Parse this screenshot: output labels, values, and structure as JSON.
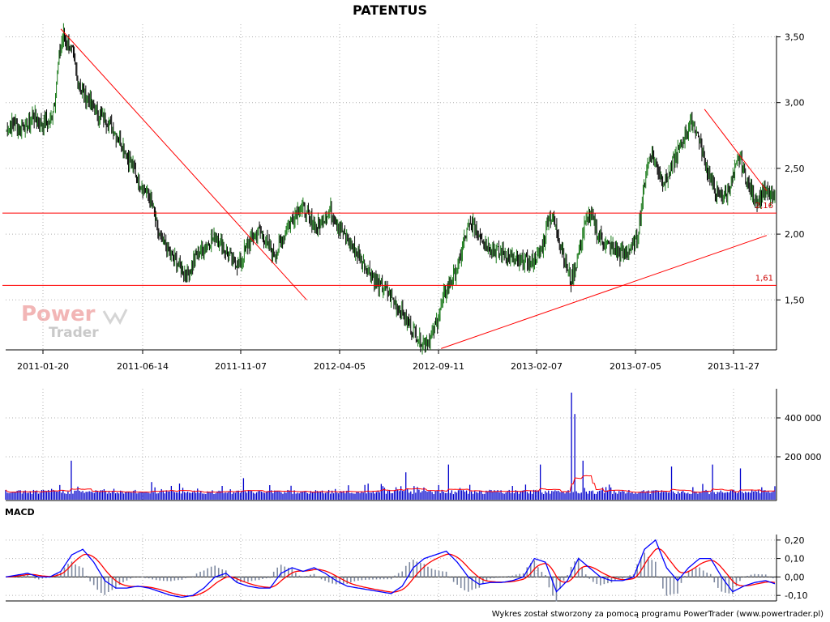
{
  "chart_data": [
    {
      "panel": "price",
      "type": "line",
      "title": "PATENTUS",
      "x_tick_labels": [
        "2011-01-20",
        "2011-06-14",
        "2011-11-07",
        "2012-04-05",
        "2012-09-11",
        "2013-02-07",
        "2013-07-05",
        "2013-11-27"
      ],
      "y_tick_labels": [
        "3,50",
        "3,00",
        "2,50",
        "2,00",
        "1,50"
      ],
      "y_ticks": [
        3.5,
        3.0,
        2.5,
        2.0,
        1.5
      ],
      "ylim": [
        1.12,
        3.62
      ],
      "grid": true,
      "colors": {
        "price_up": "#1a7a1a",
        "price_down": "#000000",
        "lines": "#ff0000"
      },
      "series": [
        {
          "values_approx_weekly": [
            2.78,
            2.82,
            2.85,
            2.8,
            2.83,
            2.82,
            2.9,
            2.88,
            2.84,
            2.86,
            2.85,
            3.02,
            3.35,
            3.52,
            3.45,
            3.38,
            3.2,
            3.1,
            3.05,
            3.0,
            2.95,
            2.9,
            2.88,
            2.85,
            2.8,
            2.75,
            2.7,
            2.62,
            2.55,
            2.48,
            2.4,
            2.35,
            2.3,
            2.2,
            2.05,
            1.95,
            1.9,
            1.85,
            1.8,
            1.75,
            1.72,
            1.7,
            1.78,
            1.85,
            1.88,
            1.92,
            1.95,
            1.98,
            1.95,
            1.9,
            1.85,
            1.8,
            1.78,
            1.8,
            1.9,
            1.95,
            2.0,
            2.02,
            1.98,
            1.9,
            1.85,
            1.88,
            1.95,
            2.05,
            2.1,
            2.15,
            2.2,
            2.18,
            2.12,
            2.08,
            2.05,
            2.1,
            2.15,
            2.18,
            2.12,
            2.05,
            2.0,
            1.95,
            1.9,
            1.85,
            1.8,
            1.75,
            1.7,
            1.65,
            1.6,
            1.58,
            1.55,
            1.5,
            1.45,
            1.4,
            1.35,
            1.3,
            1.25,
            1.2,
            1.18,
            1.2,
            1.25,
            1.35,
            1.48,
            1.58,
            1.65,
            1.7,
            1.8,
            1.95,
            2.05,
            2.08,
            2.02,
            1.98,
            1.92,
            1.9,
            1.88,
            1.85,
            1.85,
            1.82,
            1.8,
            1.78,
            1.8,
            1.78,
            1.78,
            1.82,
            1.85,
            1.95,
            2.15,
            2.1,
            2.0,
            1.9,
            1.75,
            1.65,
            1.75,
            1.9,
            2.05,
            2.15,
            2.1,
            2.0,
            1.95,
            1.92,
            1.9,
            1.88,
            1.85,
            1.85,
            1.88,
            1.9,
            2.0,
            2.25,
            2.5,
            2.6,
            2.55,
            2.45,
            2.4,
            2.45,
            2.55,
            2.62,
            2.7,
            2.78,
            2.85,
            2.8,
            2.7,
            2.55,
            2.45,
            2.35,
            2.3,
            2.28,
            2.3,
            2.4,
            2.5,
            2.6,
            2.45,
            2.35,
            2.3,
            2.25,
            2.32,
            2.3,
            2.28,
            2.25
          ]
        }
      ],
      "levels": [
        {
          "value": 2.16,
          "label": "2,16"
        },
        {
          "value": 1.61,
          "label": "1,61"
        }
      ],
      "trendlines": [
        {
          "from": [
            "2011-02",
            3.56
          ],
          "to": [
            "2012-02",
            1.5
          ]
        },
        {
          "from": [
            "2012-09",
            1.13
          ],
          "to": [
            "2014-01",
            1.99
          ]
        },
        {
          "from": [
            "2013-10",
            2.95
          ],
          "to": [
            "2014-01",
            2.33
          ]
        }
      ]
    },
    {
      "panel": "volume",
      "type": "bar",
      "y_tick_labels": [
        "400 000",
        "200 000"
      ],
      "y_ticks": [
        400000,
        200000
      ],
      "ylim": [
        0,
        550000
      ],
      "colors": {
        "bars": "#0000cc",
        "average": "#ff0000"
      },
      "spikes_approx": [
        {
          "t": 0.085,
          "v": 180000
        },
        {
          "t": 0.19,
          "v": 70000
        },
        {
          "t": 0.31,
          "v": 90000
        },
        {
          "t": 0.52,
          "v": 120000
        },
        {
          "t": 0.575,
          "v": 160000
        },
        {
          "t": 0.695,
          "v": 160000
        },
        {
          "t": 0.735,
          "v": 530000
        },
        {
          "t": 0.74,
          "v": 420000
        },
        {
          "t": 0.75,
          "v": 180000
        },
        {
          "t": 0.865,
          "v": 150000
        },
        {
          "t": 0.92,
          "v": 160000
        },
        {
          "t": 0.955,
          "v": 140000
        }
      ]
    },
    {
      "panel": "macd",
      "type": "line",
      "title": "MACD",
      "y_tick_labels": [
        "0,20",
        "0,10",
        "0,00",
        "-0,10"
      ],
      "y_ticks": [
        0.2,
        0.1,
        0.0,
        -0.1
      ],
      "ylim": [
        -0.13,
        0.23
      ],
      "colors": {
        "macd": "#0000ff",
        "signal": "#ff0000",
        "histogram": "#7f8aa0"
      },
      "series": [
        {
          "name": "macd_approx",
          "values": [
            0.0,
            0.01,
            0.02,
            0.0,
            0.0,
            0.03,
            0.12,
            0.15,
            0.08,
            -0.02,
            -0.06,
            -0.06,
            -0.05,
            -0.06,
            -0.08,
            -0.1,
            -0.11,
            -0.1,
            -0.06,
            0.0,
            0.02,
            -0.03,
            -0.05,
            -0.06,
            -0.06,
            0.02,
            0.05,
            0.03,
            0.05,
            0.02,
            -0.02,
            -0.05,
            -0.06,
            -0.07,
            -0.08,
            -0.09,
            -0.05,
            0.05,
            0.1,
            0.12,
            0.14,
            0.08,
            0.0,
            -0.04,
            -0.03,
            -0.03,
            -0.02,
            0.0,
            0.1,
            0.08,
            -0.08,
            -0.02,
            0.1,
            0.05,
            0.0,
            -0.02,
            -0.02,
            0.0,
            0.15,
            0.2,
            0.05,
            -0.02,
            0.05,
            0.1,
            0.1,
            0.0,
            -0.08,
            -0.05,
            -0.03,
            -0.02,
            -0.04
          ]
        }
      ]
    }
  ],
  "footer": "Wykres został stworzony za pomocą programu PowerTrader (www.powertrader.pl)",
  "logo": {
    "line1": "Power",
    "line2": "Trader"
  }
}
